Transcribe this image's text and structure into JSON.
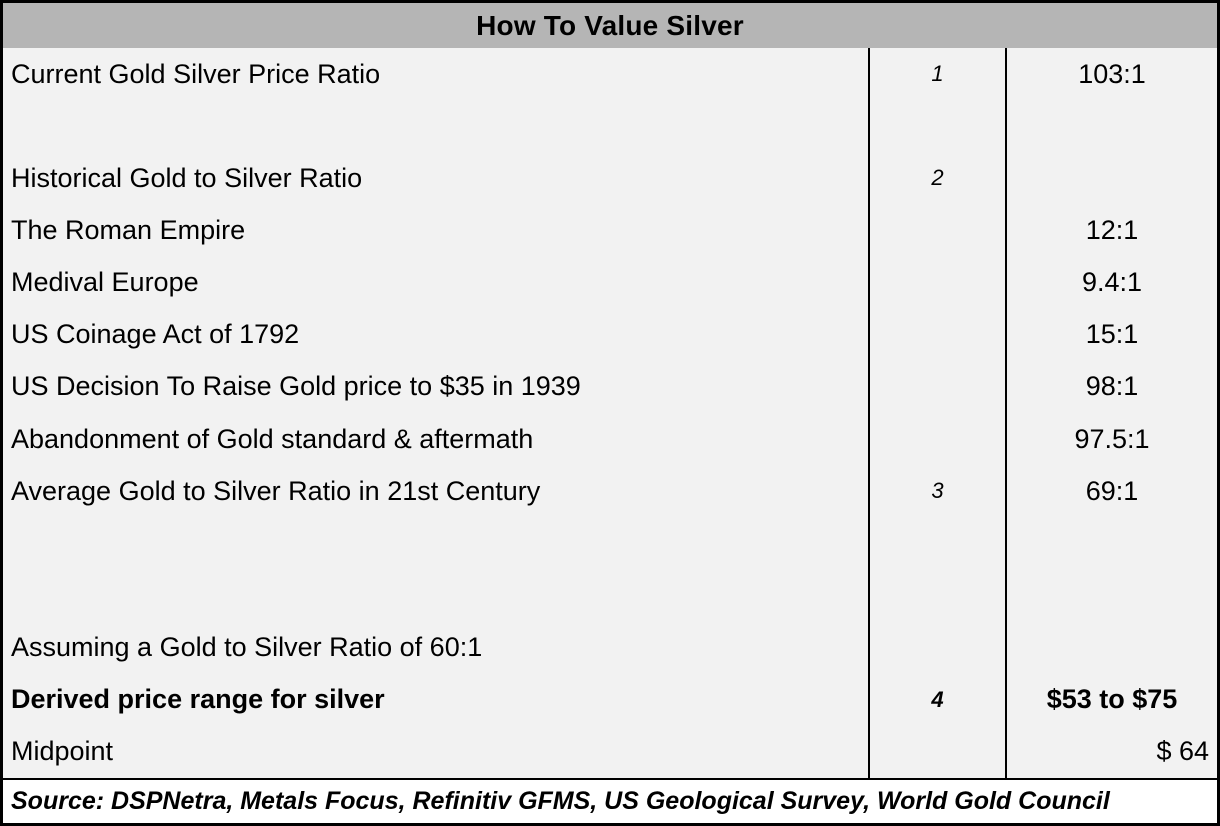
{
  "title": "How To Value Silver",
  "colors": {
    "header_bg": "#b5b5b5",
    "body_bg": "#f2f2f2",
    "source_bg": "#ffffff",
    "border": "#000000",
    "text": "#000000"
  },
  "rows": [
    {
      "label": "Current Gold Silver Price Ratio",
      "note": "1",
      "value": "103:1"
    },
    {
      "label": "",
      "note": "",
      "value": ""
    },
    {
      "label": "Historical Gold to Silver Ratio",
      "note": "2",
      "value": ""
    },
    {
      "label": "The Roman Empire",
      "note": "",
      "value": "12:1"
    },
    {
      "label": "Medival Europe",
      "note": "",
      "value": "9.4:1"
    },
    {
      "label": "US Coinage Act of 1792",
      "note": "",
      "value": "15:1"
    },
    {
      "label": "US Decision To Raise Gold price to $35 in 1939",
      "note": "",
      "value": "98:1"
    },
    {
      "label": "Abandonment of Gold standard & aftermath",
      "note": "",
      "value": "97.5:1"
    },
    {
      "label": "Average Gold to Silver Ratio in 21st Century",
      "note": "3",
      "value": "69:1"
    },
    {
      "label": "",
      "note": "",
      "value": ""
    },
    {
      "label": "",
      "note": "",
      "value": ""
    },
    {
      "label": "Assuming a Gold to Silver Ratio of 60:1",
      "note": "",
      "value": ""
    },
    {
      "label": "Derived price range for silver",
      "note": "4",
      "value": "$53 to $75"
    },
    {
      "label": "Midpoint",
      "note": "",
      "value": "$ 64"
    }
  ],
  "source": "Source: DSPNetra, Metals Focus, Refinitiv GFMS, US Geological Survey, World Gold Council"
}
